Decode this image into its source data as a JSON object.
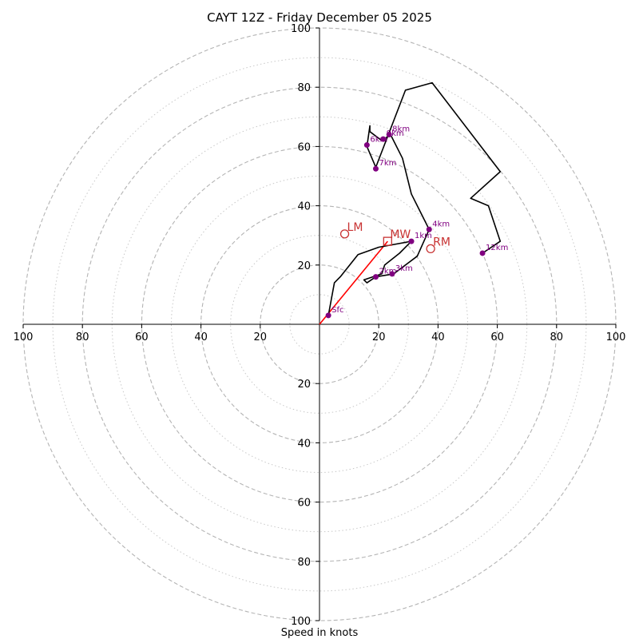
{
  "chart_data": {
    "type": "hodograph",
    "title": "CAYT 12Z - Friday December 05 2025",
    "xlabel": "Speed in knots",
    "ylabel": "",
    "max_speed": 100,
    "ring_major_labels": [
      "20",
      "40",
      "60",
      "80",
      "100"
    ],
    "grid": {
      "major_rings": [
        20,
        40,
        60,
        80,
        100
      ],
      "minor_rings": [
        10,
        30,
        50,
        70,
        90
      ]
    },
    "hodograph_line": {
      "color": "#000000",
      "points": [
        [
          3,
          3
        ],
        [
          5,
          14
        ],
        [
          7,
          16
        ],
        [
          13,
          23.5
        ],
        [
          20,
          26
        ],
        [
          31,
          28
        ],
        [
          27,
          24
        ],
        [
          22,
          20
        ],
        [
          21,
          17
        ],
        [
          15,
          15
        ],
        [
          16,
          14
        ],
        [
          19,
          16
        ],
        [
          25,
          17
        ],
        [
          33,
          23
        ],
        [
          37,
          32
        ],
        [
          31,
          44
        ],
        [
          28,
          56
        ],
        [
          24,
          64
        ],
        [
          21,
          62
        ],
        [
          17,
          65
        ],
        [
          17,
          67
        ],
        [
          16,
          60
        ],
        [
          19,
          53
        ],
        [
          29,
          79
        ],
        [
          38,
          81.5
        ],
        [
          61,
          51.5
        ],
        [
          51,
          42.5
        ],
        [
          57,
          40
        ],
        [
          61,
          28
        ],
        [
          55,
          24
        ]
      ]
    },
    "height_markers": {
      "color": "#800080",
      "points": [
        {
          "label": "Sfc",
          "u": 3,
          "v": 3
        },
        {
          "label": "1km",
          "u": 31,
          "v": 28
        },
        {
          "label": "2km",
          "u": 19,
          "v": 16
        },
        {
          "label": "3km",
          "u": 24.5,
          "v": 17
        },
        {
          "label": "4km",
          "u": 37,
          "v": 32
        },
        {
          "label": "6km",
          "u": 16,
          "v": 60.5
        },
        {
          "label": "7km",
          "u": 19,
          "v": 52.5
        },
        {
          "label": "8km",
          "u": 23.5,
          "v": 64
        },
        {
          "label": "9km",
          "u": 21.5,
          "v": 62.5
        },
        {
          "label": "12km",
          "u": 55,
          "v": 24
        }
      ]
    },
    "storm_motion": {
      "color": "#c83232",
      "points": [
        {
          "label": "LM",
          "u": 8.5,
          "v": 30.5,
          "marker": "circle"
        },
        {
          "label": "MW",
          "u": 23,
          "v": 28,
          "marker": "square"
        },
        {
          "label": "RM",
          "u": 37.5,
          "v": 25.5,
          "marker": "circle"
        }
      ]
    },
    "shear_vector": {
      "color": "#ff0000",
      "from": [
        0,
        0
      ],
      "to": [
        23,
        28
      ]
    }
  }
}
